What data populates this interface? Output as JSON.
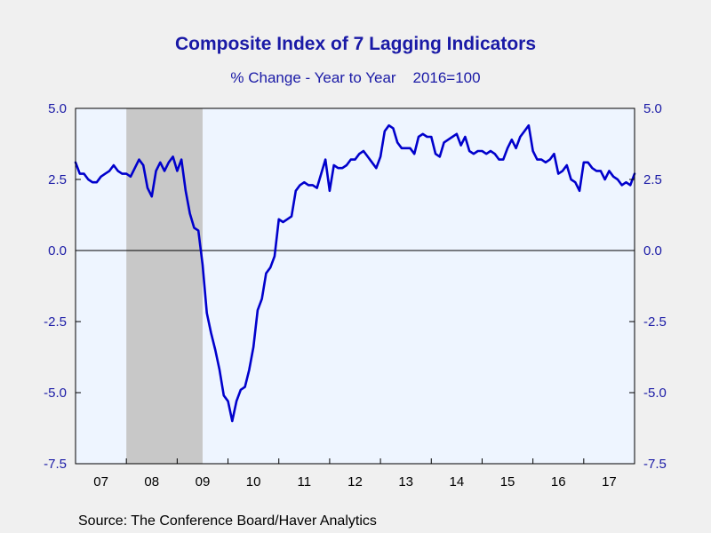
{
  "chart_data": {
    "type": "line",
    "title": "Composite Index of 7 Lagging Indicators",
    "subtitle": "% Change - Year to Year    2016=100",
    "source": "Source:  The Conference Board/Haver Analytics",
    "x_tick_labels": [
      "07",
      "08",
      "09",
      "10",
      "11",
      "12",
      "13",
      "14",
      "15",
      "16",
      "17"
    ],
    "y_tick_labels": [
      "5.0",
      "2.5",
      "0.0",
      "-2.5",
      "-5.0",
      "-7.5"
    ],
    "y_ticks": [
      5.0,
      2.5,
      0.0,
      -2.5,
      -5.0,
      -7.5
    ],
    "ylim": [
      -7.5,
      5.0
    ],
    "xlim": [
      "2007-01",
      "2017-12"
    ],
    "frequency": "monthly",
    "start": "2007-01",
    "recession_shading": {
      "from": "2008-01",
      "to": "2009-06",
      "color": "#c8c8c8"
    },
    "zero_line": true,
    "grid": false,
    "background_color": "#eef5ff",
    "series": [
      {
        "color": "#0000cc",
        "values": [
          3.1,
          2.7,
          2.7,
          2.5,
          2.4,
          2.4,
          2.6,
          2.7,
          2.8,
          3.0,
          2.8,
          2.7,
          2.7,
          2.6,
          2.9,
          3.2,
          3.0,
          2.2,
          1.9,
          2.8,
          3.1,
          2.8,
          3.1,
          3.3,
          2.8,
          3.2,
          2.1,
          1.3,
          0.8,
          0.7,
          -0.5,
          -2.2,
          -2.9,
          -3.5,
          -4.2,
          -5.1,
          -5.3,
          -6.0,
          -5.3,
          -4.9,
          -4.8,
          -4.2,
          -3.4,
          -2.1,
          -1.7,
          -0.8,
          -0.6,
          -0.2,
          1.1,
          1.0,
          1.1,
          1.2,
          2.1,
          2.3,
          2.4,
          2.3,
          2.3,
          2.2,
          2.7,
          3.2,
          2.1,
          3.0,
          2.9,
          2.9,
          3.0,
          3.2,
          3.2,
          3.4,
          3.5,
          3.3,
          3.1,
          2.9,
          3.3,
          4.2,
          4.4,
          4.3,
          3.8,
          3.6,
          3.6,
          3.6,
          3.4,
          4.0,
          4.1,
          4.0,
          4.0,
          3.4,
          3.3,
          3.8,
          3.9,
          4.0,
          4.1,
          3.7,
          4.0,
          3.5,
          3.4,
          3.5,
          3.5,
          3.4,
          3.5,
          3.4,
          3.2,
          3.2,
          3.6,
          3.9,
          3.6,
          4.0,
          4.2,
          4.4,
          3.5,
          3.2,
          3.2,
          3.1,
          3.2,
          3.4,
          2.7,
          2.8,
          3.0,
          2.5,
          2.4,
          2.1,
          3.1,
          3.1,
          2.9,
          2.8,
          2.8,
          2.5,
          2.8,
          2.6,
          2.5,
          2.3,
          2.4,
          2.3,
          2.7
        ]
      }
    ]
  }
}
